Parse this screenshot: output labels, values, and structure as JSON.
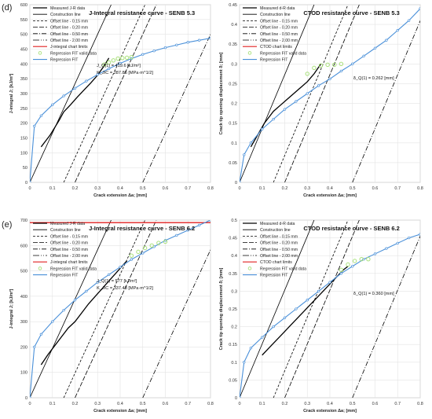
{
  "figure": {
    "panel_labels": [
      "(d)",
      "(e)"
    ]
  },
  "chart_data": [
    {
      "id": "d-left",
      "type": "line",
      "title": "J-Integral resistance curve - SENB 5.3",
      "xlabel": "Crack extension Δa; [mm]",
      "ylabel": "J-integral J; [kJ/m²]",
      "xlim": [
        0,
        0.8
      ],
      "ylim": [
        0,
        600
      ],
      "xticks": [
        "0",
        "0.1",
        "0.2",
        "0.3",
        "0.4",
        "0.5",
        "0.6",
        "0.7",
        "0.8"
      ],
      "yticks": [
        "0",
        "50",
        "100",
        "150",
        "200",
        "250",
        "300",
        "350",
        "400",
        "450",
        "500",
        "550",
        "600"
      ],
      "grid": true,
      "legend_position": "top-left",
      "legend": [
        "Measured J-R data",
        "Construction line",
        "Offset line - 0.15 mm",
        "Offset line - 0.20 mm",
        "Offset line - 0.50 mm",
        "Offset line - 2.00 mm",
        "J-integral chart limits",
        "Regression FIT valid data",
        "Regression FIT"
      ],
      "annotations": [
        "J_Q(1) = 419.6 [kJ/m²]",
        "K_JIC = 287.86 [MPa·m^1/2]"
      ],
      "series": [
        {
          "name": "Measured J-R data",
          "x": [
            0.05,
            0.07,
            0.09,
            0.11,
            0.13,
            0.15,
            0.18,
            0.21,
            0.24,
            0.27,
            0.3,
            0.33,
            0.35
          ],
          "y": [
            120,
            140,
            160,
            185,
            210,
            238,
            262,
            288,
            312,
            336,
            362,
            395,
            420
          ]
        },
        {
          "name": "Regression FIT",
          "x": [
            0.0,
            0.02,
            0.05,
            0.1,
            0.15,
            0.2,
            0.25,
            0.3,
            0.35,
            0.4,
            0.45,
            0.5,
            0.55,
            0.6,
            0.65,
            0.7,
            0.75,
            0.8
          ],
          "y": [
            0,
            190,
            225,
            262,
            292,
            318,
            342,
            364,
            384,
            402,
            418,
            432,
            444,
            455,
            464,
            473,
            480,
            487
          ]
        },
        {
          "name": "Regression FIT valid data",
          "x": [
            0.33,
            0.35,
            0.37,
            0.39,
            0.41,
            0.43,
            0.45
          ],
          "y": [
            398,
            405,
            412,
            418,
            420,
            421,
            423
          ]
        }
      ]
    },
    {
      "id": "d-right",
      "type": "line",
      "title": "CTOD resistance curve - SENB 5.3",
      "xlabel": "Crack extension Δa; [mm]",
      "ylabel": "Crack tip opening displacement δ; [mm]",
      "xlim": [
        0,
        0.8
      ],
      "ylim": [
        0,
        0.45
      ],
      "xticks": [
        "0",
        "0.1",
        "0.2",
        "0.3",
        "0.4",
        "0.5",
        "0.6",
        "0.7",
        "0.8"
      ],
      "yticks": [
        "0",
        "0.05",
        "0.1",
        "0.15",
        "0.2",
        "0.25",
        "0.3",
        "0.35",
        "0.4",
        "0.45"
      ],
      "grid": true,
      "legend_position": "top-left",
      "legend": [
        "Measured d-R data",
        "Construction line",
        "Offset line - 0.15 mm",
        "Offset line - 0.20 mm",
        "Offset line - 0.50 mm",
        "Offset line - 2.00 mm",
        "CTOD chart limits",
        "Regression FIT valid data",
        "Regression FIT"
      ],
      "annotations": [
        "δ_Q(1) = 0.262 [mm]"
      ],
      "series": [
        {
          "name": "Measured d-R data",
          "x": [
            0.05,
            0.07,
            0.09,
            0.11,
            0.13,
            0.15,
            0.18,
            0.21,
            0.24,
            0.27,
            0.3,
            0.33,
            0.36
          ],
          "y": [
            0.09,
            0.11,
            0.13,
            0.15,
            0.165,
            0.18,
            0.195,
            0.21,
            0.225,
            0.24,
            0.255,
            0.275,
            0.3
          ]
        },
        {
          "name": "Regression FIT",
          "x": [
            0.0,
            0.02,
            0.05,
            0.1,
            0.15,
            0.2,
            0.25,
            0.3,
            0.35,
            0.4,
            0.45,
            0.5,
            0.55,
            0.6,
            0.65,
            0.7,
            0.75,
            0.8
          ],
          "y": [
            0,
            0.07,
            0.1,
            0.135,
            0.16,
            0.185,
            0.205,
            0.225,
            0.245,
            0.262,
            0.282,
            0.3,
            0.32,
            0.34,
            0.36,
            0.385,
            0.41,
            0.44
          ]
        },
        {
          "name": "Regression FIT valid data",
          "x": [
            0.3,
            0.33,
            0.36,
            0.39,
            0.42,
            0.45
          ],
          "y": [
            0.275,
            0.29,
            0.296,
            0.298,
            0.298,
            0.3
          ]
        }
      ]
    },
    {
      "id": "e-left",
      "type": "line",
      "title": "J-Integral resistance curve - SENB 6.2",
      "xlabel": "Crack extension Δa; [mm]",
      "ylabel": "J-integral J; [kJ/m²]",
      "xlim": [
        0,
        0.8
      ],
      "ylim": [
        0,
        700
      ],
      "xticks": [
        "0",
        "0.1",
        "0.2",
        "0.3",
        "0.4",
        "0.5",
        "0.6",
        "0.7",
        "0.8"
      ],
      "yticks": [
        "0",
        "100",
        "200",
        "300",
        "400",
        "500",
        "600",
        "700"
      ],
      "grid": true,
      "legend_position": "top-left",
      "legend": [
        "Measured J-R data",
        "Construction line",
        "Offset line - 0.15 mm",
        "Offset line - 0.20 mm",
        "Offset line - 0.50 mm",
        "Offset line - 2.00 mm",
        "J-integral chart limits",
        "Regression FIT valid data",
        "Regression FIT"
      ],
      "annotations": [
        "J_Q(1) = 577 [kJ/m²]",
        "K_JIC = 337.48 [MPa·m^1/2]"
      ],
      "limit_line": 690,
      "series": [
        {
          "name": "Measured J-R data",
          "x": [
            0.05,
            0.08,
            0.11,
            0.14,
            0.17,
            0.2,
            0.23,
            0.26,
            0.29,
            0.32,
            0.35,
            0.38,
            0.41,
            0.43
          ],
          "y": [
            130,
            170,
            205,
            240,
            275,
            300,
            335,
            370,
            400,
            430,
            460,
            490,
            520,
            540
          ]
        },
        {
          "name": "Regression FIT",
          "x": [
            0.0,
            0.02,
            0.05,
            0.1,
            0.15,
            0.2,
            0.25,
            0.3,
            0.35,
            0.4,
            0.45,
            0.5,
            0.55,
            0.6,
            0.65,
            0.7,
            0.75,
            0.8
          ],
          "y": [
            0,
            200,
            250,
            300,
            345,
            385,
            420,
            455,
            485,
            515,
            545,
            570,
            595,
            620,
            640,
            660,
            680,
            700
          ]
        },
        {
          "name": "Regression FIT valid data",
          "x": [
            0.45,
            0.48,
            0.51,
            0.54,
            0.57,
            0.6
          ],
          "y": [
            560,
            575,
            590,
            600,
            610,
            615
          ]
        }
      ]
    },
    {
      "id": "e-right",
      "type": "line",
      "title": "CTOD resistance curve - SENB 6.2",
      "xlabel": "Crack extension Δa; [mm]",
      "ylabel": "Crack tip opening displacement δ; [mm]",
      "xlim": [
        0,
        0.8
      ],
      "ylim": [
        0,
        0.5
      ],
      "xticks": [
        "0",
        "0.1",
        "0.2",
        "0.3",
        "0.4",
        "0.5",
        "0.6",
        "0.7",
        "0.8"
      ],
      "yticks": [
        "0",
        "0.05",
        "0.1",
        "0.15",
        "0.2",
        "0.25",
        "0.3",
        "0.35",
        "0.4",
        "0.45",
        "0.5"
      ],
      "grid": true,
      "legend_position": "top-left",
      "legend": [
        "Measured d-R data",
        "Construction line",
        "Offset line - 0.15 mm",
        "Offset line - 0.20 mm",
        "Offset line - 0.50 mm",
        "Offset line - 2.00 mm",
        "CTOD chart limits",
        "Regression FIT valid data",
        "Regression FIT"
      ],
      "annotations": [
        "δ_Q(1) = 0.360 [mm]"
      ],
      "series": [
        {
          "name": "Measured d-R data",
          "x": [
            0.1,
            0.13,
            0.16,
            0.19,
            0.22,
            0.25,
            0.28,
            0.31,
            0.34,
            0.37,
            0.4,
            0.43,
            0.46,
            0.48
          ],
          "y": [
            0.12,
            0.14,
            0.16,
            0.18,
            0.2,
            0.22,
            0.24,
            0.26,
            0.28,
            0.3,
            0.32,
            0.34,
            0.36,
            0.37
          ]
        },
        {
          "name": "Regression FIT",
          "x": [
            0.0,
            0.02,
            0.05,
            0.1,
            0.15,
            0.2,
            0.25,
            0.3,
            0.35,
            0.4,
            0.45,
            0.5,
            0.55,
            0.6,
            0.65,
            0.7,
            0.75,
            0.8
          ],
          "y": [
            0,
            0.1,
            0.14,
            0.17,
            0.2,
            0.225,
            0.25,
            0.275,
            0.3,
            0.325,
            0.35,
            0.37,
            0.39,
            0.405,
            0.42,
            0.435,
            0.45,
            0.46
          ]
        },
        {
          "name": "Regression FIT valid data",
          "x": [
            0.45,
            0.48,
            0.51,
            0.54,
            0.57
          ],
          "y": [
            0.36,
            0.375,
            0.385,
            0.39,
            0.39
          ]
        }
      ]
    }
  ]
}
